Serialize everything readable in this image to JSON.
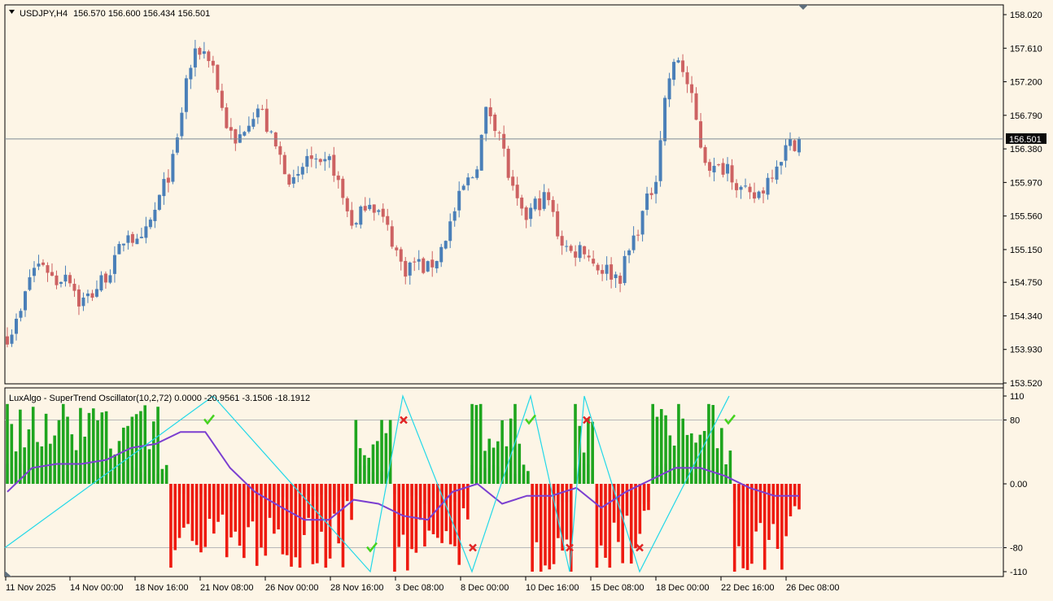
{
  "window": {
    "symbol_caption": "USDJPY,H4",
    "ohlc_caption": "156.570 156.600 156.434 156.501",
    "current_price_label": "156.501",
    "current_price": 156.501
  },
  "colors": {
    "background": "#fdf5e6",
    "bull": "#4a7fb8",
    "bear": "#cd6262",
    "hist_green": "#1ea51e",
    "hist_red": "#ee1a10",
    "hist_gray": "#c0c0c0",
    "signal_line": "#7b3fd0",
    "zigzag": "#22d8e8",
    "check": "#46d21f",
    "cross": "#e02424",
    "price_box": "#0a0a0a"
  },
  "price_axis": {
    "ticks": [
      "158.020",
      "157.610",
      "157.200",
      "156.790",
      "156.380",
      "155.970",
      "155.560",
      "155.150",
      "154.750",
      "154.340",
      "153.930",
      "153.520"
    ],
    "range": [
      153.52,
      158.02
    ]
  },
  "indicator": {
    "caption": "LuxAlgo - SuperTrend Oscillator(10,2,72) 0.0000 -20.9561 -3.1506 -18.1912",
    "levels": [
      "110",
      "80",
      "0.00",
      "-80",
      "-110"
    ],
    "range": [
      -110,
      110
    ]
  },
  "time_axis": {
    "labels": [
      "11 Nov 2025",
      "14 Nov 00:00",
      "18 Nov 16:00",
      "21 Nov 08:00",
      "26 Nov 00:00",
      "28 Nov 16:00",
      "3 Dec 08:00",
      "8 Dec 00:00",
      "10 Dec 16:00",
      "15 Dec 08:00",
      "18 Dec 00:00",
      "22 Dec 16:00",
      "26 Dec 08:00"
    ]
  },
  "chart_data": [
    {
      "type": "candlestick",
      "title": "USDJPY,H4",
      "ylim": [
        153.52,
        158.02
      ],
      "close_path": [
        154.1,
        154.3,
        154.9,
        155.0,
        154.75,
        154.9,
        154.5,
        154.6,
        154.8,
        155.0,
        155.4,
        155.15,
        155.5,
        155.9,
        156.3,
        157.3,
        157.6,
        157.5,
        156.8,
        156.4,
        156.75,
        156.9,
        156.5,
        156.2,
        155.9,
        156.3,
        156.1,
        156.25,
        155.75,
        155.4,
        155.8,
        155.6,
        155.3,
        154.9,
        155.0,
        154.9,
        155.1,
        155.5,
        155.9,
        156.1,
        156.9,
        156.6,
        155.9,
        155.5,
        155.7,
        155.8,
        155.3,
        155.1,
        155.2,
        154.95,
        154.9,
        154.8,
        155.2,
        155.6,
        156.0,
        157.2,
        157.5,
        157.0,
        156.3,
        156.1,
        156.2,
        155.9,
        155.75,
        155.9,
        156.2,
        156.4,
        156.5
      ],
      "current_price": 156.501
    },
    {
      "type": "bar",
      "title": "LuxAlgo - SuperTrend Oscillator(10,2,72)",
      "values_shown": [
        0.0,
        -20.9561,
        -3.1506,
        -18.1912
      ],
      "ylim": [
        -110,
        110
      ],
      "levels": [
        110,
        80,
        0,
        -80,
        -110
      ],
      "zone_pattern": [
        {
          "sign": 1,
          "bars": 38,
          "peak": 100
        },
        {
          "sign": -1,
          "bars": 43,
          "peak": 105
        },
        {
          "sign": 1,
          "bars": 9,
          "peak": 80
        },
        {
          "sign": -1,
          "bars": 18,
          "peak": 110
        },
        {
          "sign": 1,
          "bars": 14,
          "peak": 100
        },
        {
          "sign": -1,
          "bars": 10,
          "peak": 110
        },
        {
          "sign": 1,
          "bars": 5,
          "peak": 100
        },
        {
          "sign": -1,
          "bars": 13,
          "peak": 105
        },
        {
          "sign": 1,
          "bars": 19,
          "peak": 100
        },
        {
          "sign": -1,
          "bars": 16,
          "peak": 110
        }
      ],
      "signal_line": [
        -10,
        20,
        25,
        25,
        30,
        45,
        50,
        65,
        65,
        20,
        -10,
        -28,
        -45,
        -45,
        -20,
        -25,
        -40,
        -45,
        -10,
        0,
        -25,
        -15,
        -15,
        -5,
        -30,
        -10,
        5,
        20,
        20,
        10,
        -5,
        -15,
        -15
      ],
      "markers": [
        {
          "type": "check",
          "value": 80
        },
        {
          "type": "cross",
          "value": 80
        },
        {
          "type": "check",
          "value": -80
        },
        {
          "type": "cross",
          "value": -80
        },
        {
          "type": "check",
          "value": 80
        },
        {
          "type": "cross",
          "value": 80
        },
        {
          "type": "cross",
          "value": -80
        },
        {
          "type": "cross",
          "value": -80
        },
        {
          "type": "check",
          "value": 80
        }
      ]
    }
  ]
}
